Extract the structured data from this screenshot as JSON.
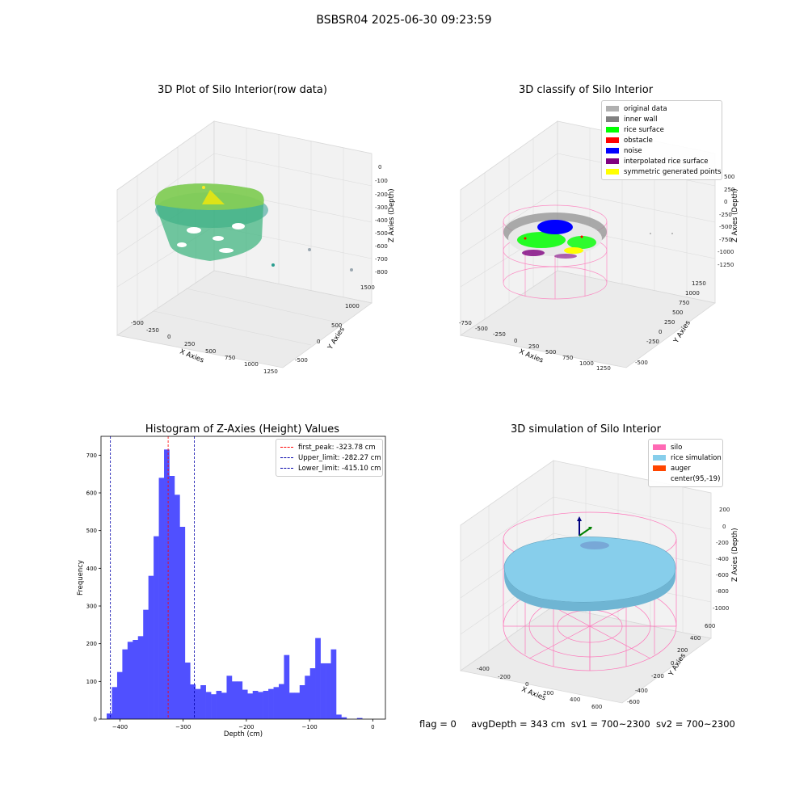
{
  "suptitle": "BSBSR04 2025-06-30 09:23:59",
  "footer": {
    "flag": "flag = 0",
    "avg": "avgDepth = 343 cm",
    "sv1": "sv1 = 700~2300",
    "sv2": "sv2 = 700~2300"
  },
  "colors": {
    "hist_bar": "#5050ff",
    "first_peak": "#ff0000",
    "limits": "#0000aa",
    "silo": "#ff69b4",
    "rice": "#87ceeb",
    "auger": "#ff4500"
  },
  "panels": {
    "raw": {
      "title": "3D Plot of Silo Interior(row data)",
      "xlabel": "X Axies",
      "ylabel": "Y Axies",
      "zlabel": "Z Axies (Depth)",
      "xticks": [
        "-500",
        "-250",
        "0",
        "250",
        "500",
        "750",
        "1000",
        "1250"
      ],
      "yticks": [
        "-500",
        "0",
        "500",
        "1000",
        "1500"
      ],
      "zticks": [
        "0",
        "-100",
        "-200",
        "-300",
        "-400",
        "-500",
        "-600",
        "-700",
        "-800"
      ]
    },
    "classify": {
      "title": "3D classify of Silo Interior",
      "xlabel": "X Axies",
      "ylabel": "Y Axies",
      "zlabel": "Z Axies (Depth)",
      "xticks": [
        "-750",
        "-500",
        "-250",
        "0",
        "250",
        "500",
        "750",
        "1000",
        "1250"
      ],
      "yticks": [
        "-500",
        "-250",
        "0",
        "250",
        "500",
        "750",
        "1000",
        "1250"
      ],
      "zticks": [
        "500",
        "250",
        "0",
        "-250",
        "-500",
        "-750",
        "-1000",
        "-1250"
      ],
      "legend": [
        {
          "label": "original data",
          "color": "#b0b0b0"
        },
        {
          "label": "inner wall",
          "color": "#808080"
        },
        {
          "label": "rice surface",
          "color": "#00ff00"
        },
        {
          "label": "obstacle",
          "color": "#ff0000"
        },
        {
          "label": "noise",
          "color": "#0000ff"
        },
        {
          "label": "interpolated rice surface",
          "color": "#800080"
        },
        {
          "label": "symmetric generated points",
          "color": "#ffff00"
        }
      ]
    },
    "simulation": {
      "title": "3D simulation of Silo Interior",
      "xlabel": "X Axies",
      "ylabel": "Y Axies",
      "zlabel": "Z Axies (Depth)",
      "xticks": [
        "-400",
        "-200",
        "0",
        "200",
        "400",
        "600"
      ],
      "yticks": [
        "-600",
        "-400",
        "-200",
        "0",
        "200",
        "400",
        "600"
      ],
      "zticks": [
        "200",
        "0",
        "-200",
        "-400",
        "-600",
        "-800",
        "-1000"
      ],
      "legend": [
        {
          "label": "silo",
          "color": "#ff69b4"
        },
        {
          "label": "rice simulation",
          "color": "#87ceeb"
        },
        {
          "label": "auger",
          "color": "#ff4500"
        },
        {
          "label": "center(95,-19)",
          "color": ""
        }
      ]
    }
  },
  "chart_data": {
    "type": "bar",
    "title": "Histogram of Z-Axies (Height) Values",
    "xlabel": "Depth (cm)",
    "ylabel": "Frequency",
    "xlim": [
      -430,
      20
    ],
    "ylim": [
      0,
      750
    ],
    "xticks": [
      -400,
      -300,
      -200,
      -100,
      0
    ],
    "yticks": [
      0,
      100,
      200,
      300,
      400,
      500,
      600,
      700
    ],
    "bin_width": 8.25,
    "bin_start": -421,
    "values": [
      15,
      85,
      125,
      185,
      205,
      210,
      220,
      290,
      380,
      485,
      640,
      715,
      645,
      595,
      510,
      150,
      92,
      80,
      90,
      72,
      66,
      75,
      70,
      115,
      100,
      100,
      78,
      68,
      75,
      72,
      75,
      80,
      85,
      93,
      170,
      70,
      70,
      90,
      115,
      135,
      215,
      148,
      148,
      185,
      12,
      5,
      0,
      0,
      3
    ],
    "vlines": [
      {
        "label": "first_peak: -323.78 cm",
        "x": -323.78,
        "color": "#ff0000"
      },
      {
        "label": "Upper_limit: -282.27 cm",
        "x": -282.27,
        "color": "#0000aa"
      },
      {
        "label": "Lower_limit: -415.10 cm",
        "x": -415.1,
        "color": "#0000aa"
      }
    ],
    "legend_position": "top-right"
  }
}
